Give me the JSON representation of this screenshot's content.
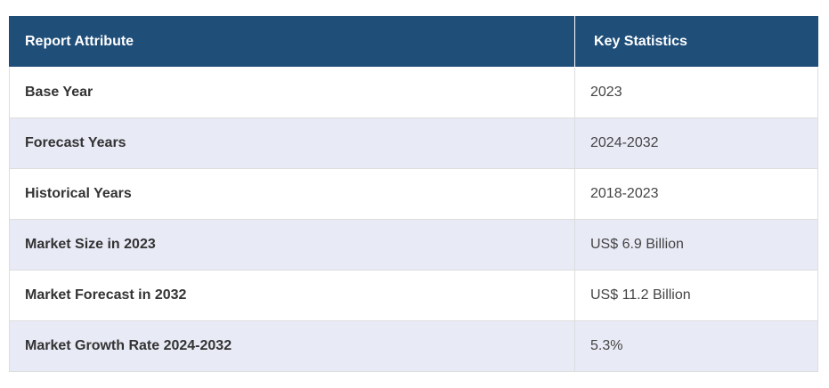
{
  "table": {
    "headers": [
      "Report Attribute",
      "Key Statistics"
    ],
    "rows": [
      {
        "attribute": "Base Year",
        "value": "2023"
      },
      {
        "attribute": "Forecast Years",
        "value": "2024-2032"
      },
      {
        "attribute": "Historical Years",
        "value": "2018-2023"
      },
      {
        "attribute": "Market Size in 2023",
        "value": "US$ 6.9 Billion"
      },
      {
        "attribute": "Market Forecast in 2032",
        "value": "US$ 11.2 Billion"
      },
      {
        "attribute": "Market Growth Rate 2024-2032",
        "value": "5.3%"
      }
    ]
  },
  "colors": {
    "header_bg": "#1f4e79",
    "header_text": "#ffffff",
    "stripe_bg": "#e8eaf6",
    "row_bg": "#ffffff"
  }
}
